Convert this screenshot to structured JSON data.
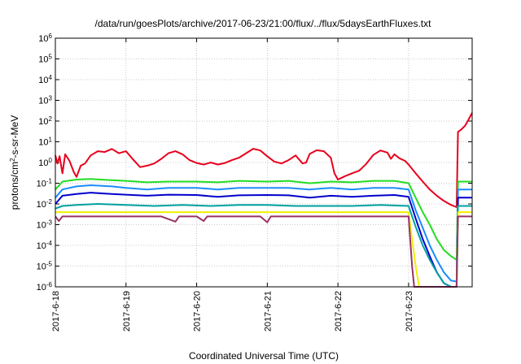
{
  "chart_data": {
    "type": "line",
    "title": "/data/run/goesPlots/archive/2017-06-23/21:00/flux/../flux/5daysEarthFluxes.txt",
    "xlabel": "Coordinated Universal Time (UTC)",
    "ylabel": "protons/cm²-s-sr-MeV",
    "ylabel_parts": {
      "pre": "protons/cm",
      "sup": "2",
      "post": "-s-sr-MeV"
    },
    "yscale": "log",
    "ylim": [
      1e-06,
      1000000.0
    ],
    "xlim": [
      0,
      5.9
    ],
    "grid": true,
    "x_ticks": [
      {
        "value": 0,
        "label": "2017-6-18"
      },
      {
        "value": 1,
        "label": "2017-6-19"
      },
      {
        "value": 2,
        "label": "2017-6-20"
      },
      {
        "value": 3,
        "label": "2017-6-21"
      },
      {
        "value": 4,
        "label": "2017-6-22"
      },
      {
        "value": 5,
        "label": "2017-6-23"
      }
    ],
    "y_ticks": [
      {
        "value": 1e-06,
        "base": "10",
        "exp": "-6"
      },
      {
        "value": 1e-05,
        "base": "10",
        "exp": "-5"
      },
      {
        "value": 0.0001,
        "base": "10",
        "exp": "-4"
      },
      {
        "value": 0.001,
        "base": "10",
        "exp": "-3"
      },
      {
        "value": 0.01,
        "base": "10",
        "exp": "-2"
      },
      {
        "value": 0.1,
        "base": "10",
        "exp": "-1"
      },
      {
        "value": 1,
        "base": "10",
        "exp": "0"
      },
      {
        "value": 10,
        "base": "10",
        "exp": "1"
      },
      {
        "value": 100,
        "base": "10",
        "exp": "2"
      },
      {
        "value": 1000,
        "base": "10",
        "exp": "3"
      },
      {
        "value": 10000,
        "base": "10",
        "exp": "4"
      },
      {
        "value": 100000,
        "base": "10",
        "exp": "5"
      },
      {
        "value": 1000000,
        "base": "10",
        "exp": "6"
      }
    ],
    "series": [
      {
        "color": "#e8001c",
        "points": [
          [
            0,
            2.2
          ],
          [
            0.03,
            0.9
          ],
          [
            0.06,
            2
          ],
          [
            0.1,
            0.3
          ],
          [
            0.14,
            2.5
          ],
          [
            0.2,
            1.2
          ],
          [
            0.26,
            0.35
          ],
          [
            0.3,
            0.2
          ],
          [
            0.36,
            0.7
          ],
          [
            0.42,
            0.9
          ],
          [
            0.5,
            2.2
          ],
          [
            0.6,
            3.5
          ],
          [
            0.7,
            3.2
          ],
          [
            0.8,
            4.5
          ],
          [
            0.9,
            2.8
          ],
          [
            1.0,
            3.5
          ],
          [
            1.1,
            1.4
          ],
          [
            1.2,
            0.6
          ],
          [
            1.3,
            0.7
          ],
          [
            1.4,
            0.9
          ],
          [
            1.5,
            1.5
          ],
          [
            1.6,
            2.8
          ],
          [
            1.7,
            3.5
          ],
          [
            1.8,
            2.5
          ],
          [
            1.9,
            1.3
          ],
          [
            2.0,
            0.95
          ],
          [
            2.1,
            0.8
          ],
          [
            2.2,
            1.0
          ],
          [
            2.3,
            0.8
          ],
          [
            2.4,
            0.95
          ],
          [
            2.5,
            1.3
          ],
          [
            2.6,
            1.7
          ],
          [
            2.7,
            2.8
          ],
          [
            2.8,
            4.6
          ],
          [
            2.9,
            3.8
          ],
          [
            3.0,
            2.0
          ],
          [
            3.1,
            1.1
          ],
          [
            3.2,
            0.9
          ],
          [
            3.3,
            1.3
          ],
          [
            3.4,
            2.2
          ],
          [
            3.5,
            0.9
          ],
          [
            3.55,
            1.0
          ],
          [
            3.6,
            2.6
          ],
          [
            3.7,
            3.9
          ],
          [
            3.8,
            3.5
          ],
          [
            3.9,
            1.7
          ],
          [
            3.95,
            0.3
          ],
          [
            4.0,
            0.15
          ],
          [
            4.1,
            0.22
          ],
          [
            4.2,
            0.3
          ],
          [
            4.3,
            0.4
          ],
          [
            4.4,
            0.85
          ],
          [
            4.5,
            2.3
          ],
          [
            4.6,
            3.8
          ],
          [
            4.7,
            3.0
          ],
          [
            4.75,
            1.5
          ],
          [
            4.8,
            2.5
          ],
          [
            4.87,
            1.6
          ],
          [
            4.95,
            1.2
          ],
          [
            5.0,
            0.8
          ],
          [
            5.1,
            0.3
          ],
          [
            5.2,
            0.12
          ],
          [
            5.3,
            0.05
          ],
          [
            5.4,
            0.025
          ],
          [
            5.5,
            0.014
          ],
          [
            5.6,
            0.009
          ],
          [
            5.68,
            0.007
          ],
          [
            5.7,
            30
          ],
          [
            5.75,
            40
          ],
          [
            5.8,
            60
          ],
          [
            5.85,
            120
          ],
          [
            5.9,
            250
          ]
        ]
      },
      {
        "color": "#22dd22",
        "points": [
          [
            0,
            0.05
          ],
          [
            0.1,
            0.12
          ],
          [
            0.3,
            0.15
          ],
          [
            0.5,
            0.16
          ],
          [
            0.8,
            0.14
          ],
          [
            1.0,
            0.13
          ],
          [
            1.3,
            0.11
          ],
          [
            1.6,
            0.12
          ],
          [
            2.0,
            0.12
          ],
          [
            2.3,
            0.11
          ],
          [
            2.6,
            0.13
          ],
          [
            3.0,
            0.12
          ],
          [
            3.3,
            0.13
          ],
          [
            3.6,
            0.1
          ],
          [
            3.9,
            0.12
          ],
          [
            4.2,
            0.11
          ],
          [
            4.5,
            0.13
          ],
          [
            4.8,
            0.13
          ],
          [
            5.0,
            0.1
          ],
          [
            5.1,
            0.02
          ],
          [
            5.2,
            0.004
          ],
          [
            5.3,
            0.001
          ],
          [
            5.4,
            0.0002
          ],
          [
            5.5,
            6e-05
          ],
          [
            5.6,
            3e-05
          ],
          [
            5.68,
            2e-05
          ],
          [
            5.7,
            0.12
          ],
          [
            5.8,
            0.12
          ],
          [
            5.9,
            0.12
          ]
        ]
      },
      {
        "color": "#1a8cff",
        "points": [
          [
            0,
            0.02
          ],
          [
            0.1,
            0.05
          ],
          [
            0.3,
            0.07
          ],
          [
            0.5,
            0.08
          ],
          [
            0.8,
            0.07
          ],
          [
            1.0,
            0.06
          ],
          [
            1.3,
            0.05
          ],
          [
            1.6,
            0.06
          ],
          [
            2.0,
            0.06
          ],
          [
            2.3,
            0.05
          ],
          [
            2.6,
            0.06
          ],
          [
            3.0,
            0.06
          ],
          [
            3.3,
            0.06
          ],
          [
            3.6,
            0.05
          ],
          [
            3.9,
            0.06
          ],
          [
            4.2,
            0.05
          ],
          [
            4.5,
            0.06
          ],
          [
            4.8,
            0.06
          ],
          [
            5.0,
            0.05
          ],
          [
            5.1,
            0.005
          ],
          [
            5.2,
            0.0007
          ],
          [
            5.3,
            0.0001
          ],
          [
            5.4,
            2e-05
          ],
          [
            5.5,
            5e-06
          ],
          [
            5.6,
            2e-06
          ],
          [
            5.68,
            1.8e-06
          ],
          [
            5.7,
            0.05
          ],
          [
            5.8,
            0.05
          ],
          [
            5.9,
            0.05
          ]
        ]
      },
      {
        "color": "#0000cc",
        "points": [
          [
            0,
            0.01
          ],
          [
            0.1,
            0.025
          ],
          [
            0.3,
            0.03
          ],
          [
            0.5,
            0.035
          ],
          [
            0.8,
            0.03
          ],
          [
            1.0,
            0.028
          ],
          [
            1.3,
            0.025
          ],
          [
            1.6,
            0.028
          ],
          [
            2.0,
            0.027
          ],
          [
            2.3,
            0.022
          ],
          [
            2.6,
            0.026
          ],
          [
            3.0,
            0.027
          ],
          [
            3.3,
            0.026
          ],
          [
            3.6,
            0.02
          ],
          [
            3.9,
            0.025
          ],
          [
            4.2,
            0.022
          ],
          [
            4.5,
            0.025
          ],
          [
            4.8,
            0.027
          ],
          [
            5.0,
            0.022
          ],
          [
            5.1,
            0.002
          ],
          [
            5.2,
            0.0002
          ],
          [
            5.3,
            3e-05
          ],
          [
            5.4,
            5e-06
          ],
          [
            5.5,
            1.5e-06
          ],
          [
            5.6,
            1e-06
          ],
          [
            5.68,
            1e-06
          ],
          [
            5.7,
            0.02
          ],
          [
            5.8,
            0.02
          ],
          [
            5.9,
            0.02
          ]
        ]
      },
      {
        "color": "#00a0a0",
        "points": [
          [
            0,
            0.006
          ],
          [
            0.1,
            0.008
          ],
          [
            0.3,
            0.009
          ],
          [
            0.6,
            0.01
          ],
          [
            1.0,
            0.009
          ],
          [
            1.4,
            0.008
          ],
          [
            1.8,
            0.009
          ],
          [
            2.2,
            0.008
          ],
          [
            2.6,
            0.009
          ],
          [
            3.0,
            0.009
          ],
          [
            3.4,
            0.008
          ],
          [
            3.8,
            0.008
          ],
          [
            4.2,
            0.008
          ],
          [
            4.6,
            0.009
          ],
          [
            5.0,
            0.008
          ],
          [
            5.1,
            0.0008
          ],
          [
            5.2,
            0.0001
          ],
          [
            5.3,
            2e-05
          ],
          [
            5.4,
            5e-06
          ],
          [
            5.5,
            1.5e-06
          ],
          [
            5.6,
            1e-06
          ],
          [
            5.68,
            1e-06
          ],
          [
            5.7,
            0.008
          ],
          [
            5.8,
            0.008
          ],
          [
            5.9,
            0.008
          ]
        ]
      },
      {
        "color": "#f0f000",
        "points": [
          [
            0,
            0.004
          ],
          [
            0.5,
            0.004
          ],
          [
            1.0,
            0.004
          ],
          [
            1.5,
            0.004
          ],
          [
            2.0,
            0.004
          ],
          [
            2.5,
            0.004
          ],
          [
            3.0,
            0.004
          ],
          [
            3.5,
            0.004
          ],
          [
            4.0,
            0.004
          ],
          [
            4.5,
            0.004
          ],
          [
            5.0,
            0.004
          ],
          [
            5.05,
            0.0002
          ],
          [
            5.1,
            1e-05
          ],
          [
            5.15,
            1e-06
          ],
          [
            5.68,
            1e-06
          ],
          [
            5.7,
            0.004
          ],
          [
            5.9,
            0.004
          ]
        ]
      },
      {
        "color": "#993366",
        "points": [
          [
            0,
            0.0025
          ],
          [
            0.05,
            0.0015
          ],
          [
            0.1,
            0.0025
          ],
          [
            0.5,
            0.0025
          ],
          [
            1.0,
            0.0025
          ],
          [
            1.5,
            0.0025
          ],
          [
            1.7,
            0.0014
          ],
          [
            1.75,
            0.0025
          ],
          [
            2.0,
            0.0025
          ],
          [
            2.1,
            0.0015
          ],
          [
            2.15,
            0.0025
          ],
          [
            2.5,
            0.0025
          ],
          [
            2.9,
            0.0025
          ],
          [
            3.0,
            0.0013
          ],
          [
            3.05,
            0.0025
          ],
          [
            3.5,
            0.0025
          ],
          [
            4.0,
            0.0025
          ],
          [
            4.5,
            0.0025
          ],
          [
            5.0,
            0.0025
          ],
          [
            5.05,
            1e-05
          ],
          [
            5.08,
            1e-06
          ],
          [
            5.68,
            1e-06
          ],
          [
            5.7,
            0.0025
          ],
          [
            5.9,
            0.0025
          ]
        ]
      }
    ]
  }
}
